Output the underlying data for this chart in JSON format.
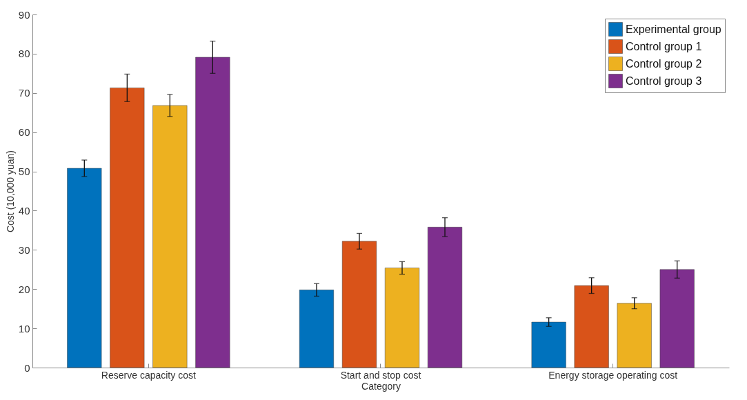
{
  "chart_data": {
    "type": "bar",
    "xlabel": "Category",
    "ylabel": "Cost (10,000 yuan)",
    "categories": [
      "Reserve capacity cost",
      "Start and stop cost",
      "Energy storage operating cost"
    ],
    "series": [
      {
        "name": "Experimental group",
        "color": "#0072bd",
        "values": [
          50.8,
          19.8,
          11.6
        ],
        "errors": [
          2.1,
          1.6,
          1.1
        ]
      },
      {
        "name": "Control group 1",
        "color": "#d95319",
        "values": [
          71.3,
          32.2,
          20.9
        ],
        "errors": [
          3.5,
          2.0,
          2.0
        ]
      },
      {
        "name": "Control group 2",
        "color": "#edb120",
        "values": [
          66.8,
          25.4,
          16.4
        ],
        "errors": [
          2.8,
          1.6,
          1.4
        ]
      },
      {
        "name": "Control group 3",
        "color": "#7e2f8e",
        "values": [
          79.1,
          35.8,
          25.0
        ],
        "errors": [
          4.1,
          2.4,
          2.2
        ]
      }
    ],
    "ylim": [
      0,
      90
    ],
    "yticks": [
      0,
      10,
      20,
      30,
      40,
      50,
      60,
      70,
      80,
      90
    ],
    "grid": false,
    "legend": "top right"
  }
}
